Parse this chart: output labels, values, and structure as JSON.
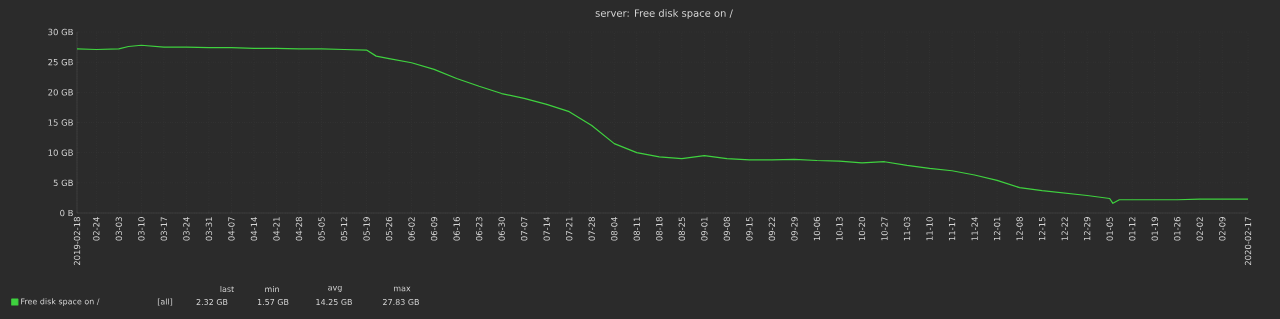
{
  "chart_data": {
    "type": "line",
    "title": "server: Free disk space on /",
    "x": [
      "2019-02-18",
      "2019-02-24",
      "2019-03-03",
      "2019-03-06",
      "2019-03-10",
      "2019-03-17",
      "2019-03-24",
      "2019-03-31",
      "2019-04-07",
      "2019-04-14",
      "2019-04-21",
      "2019-04-28",
      "2019-05-05",
      "2019-05-12",
      "2019-05-19",
      "2019-05-22",
      "2019-05-26",
      "2019-06-02",
      "2019-06-09",
      "2019-06-16",
      "2019-06-23",
      "2019-06-30",
      "2019-07-07",
      "2019-07-14",
      "2019-07-21",
      "2019-07-28",
      "2019-08-04",
      "2019-08-11",
      "2019-08-18",
      "2019-08-25",
      "2019-09-01",
      "2019-09-08",
      "2019-09-15",
      "2019-09-22",
      "2019-09-29",
      "2019-10-06",
      "2019-10-13",
      "2019-10-20",
      "2019-10-27",
      "2019-11-03",
      "2019-11-10",
      "2019-11-17",
      "2019-11-24",
      "2019-12-01",
      "2019-12-08",
      "2019-12-15",
      "2019-12-22",
      "2019-12-29",
      "2020-01-05",
      "2020-01-06",
      "2020-01-08",
      "2020-01-12",
      "2020-01-19",
      "2020-01-26",
      "2020-02-02",
      "2020-02-09",
      "2020-02-17"
    ],
    "series": [
      {
        "name": "Free disk space on /",
        "color": "#3fd23f",
        "values": [
          27.2,
          27.1,
          27.2,
          27.6,
          27.8,
          27.5,
          27.5,
          27.4,
          27.4,
          27.3,
          27.3,
          27.2,
          27.2,
          27.1,
          27.0,
          26.0,
          25.6,
          24.9,
          23.8,
          22.3,
          21.0,
          19.8,
          19.0,
          18.0,
          16.8,
          14.5,
          11.5,
          10.0,
          9.3,
          9.0,
          9.5,
          9.0,
          8.8,
          8.8,
          8.9,
          8.7,
          8.6,
          8.3,
          8.5,
          7.9,
          7.4,
          7.0,
          6.3,
          5.4,
          4.2,
          3.7,
          3.3,
          2.9,
          2.4,
          1.6,
          2.2,
          2.2,
          2.2,
          2.2,
          2.3,
          2.3,
          2.3
        ]
      }
    ],
    "xlim": [
      "2019-02-18",
      "2020-02-17"
    ],
    "xticks": [
      {
        "value": "2019-02-18",
        "label": "2019-02-18"
      },
      {
        "value": "2019-02-24",
        "label": "02-24"
      },
      {
        "value": "2019-03-03",
        "label": "03-03"
      },
      {
        "value": "2019-03-10",
        "label": "03-10"
      },
      {
        "value": "2019-03-17",
        "label": "03-17"
      },
      {
        "value": "2019-03-24",
        "label": "03-24"
      },
      {
        "value": "2019-03-31",
        "label": "03-31"
      },
      {
        "value": "2019-04-07",
        "label": "04-07"
      },
      {
        "value": "2019-04-14",
        "label": "04-14"
      },
      {
        "value": "2019-04-21",
        "label": "04-21"
      },
      {
        "value": "2019-04-28",
        "label": "04-28"
      },
      {
        "value": "2019-05-05",
        "label": "05-05"
      },
      {
        "value": "2019-05-12",
        "label": "05-12"
      },
      {
        "value": "2019-05-19",
        "label": "05-19"
      },
      {
        "value": "2019-05-26",
        "label": "05-26"
      },
      {
        "value": "2019-06-02",
        "label": "06-02"
      },
      {
        "value": "2019-06-09",
        "label": "06-09"
      },
      {
        "value": "2019-06-16",
        "label": "06-16"
      },
      {
        "value": "2019-06-23",
        "label": "06-23"
      },
      {
        "value": "2019-06-30",
        "label": "06-30"
      },
      {
        "value": "2019-07-07",
        "label": "07-07"
      },
      {
        "value": "2019-07-14",
        "label": "07-14"
      },
      {
        "value": "2019-07-21",
        "label": "07-21"
      },
      {
        "value": "2019-07-28",
        "label": "07-28"
      },
      {
        "value": "2019-08-04",
        "label": "08-04"
      },
      {
        "value": "2019-08-11",
        "label": "08-11"
      },
      {
        "value": "2019-08-18",
        "label": "08-18"
      },
      {
        "value": "2019-08-25",
        "label": "08-25"
      },
      {
        "value": "2019-09-01",
        "label": "09-01"
      },
      {
        "value": "2019-09-08",
        "label": "09-08"
      },
      {
        "value": "2019-09-15",
        "label": "09-15"
      },
      {
        "value": "2019-09-22",
        "label": "09-22"
      },
      {
        "value": "2019-09-29",
        "label": "09-29"
      },
      {
        "value": "2019-10-06",
        "label": "10-06"
      },
      {
        "value": "2019-10-13",
        "label": "10-13"
      },
      {
        "value": "2019-10-20",
        "label": "10-20"
      },
      {
        "value": "2019-10-27",
        "label": "10-27"
      },
      {
        "value": "2019-11-03",
        "label": "11-03"
      },
      {
        "value": "2019-11-10",
        "label": "11-10"
      },
      {
        "value": "2019-11-17",
        "label": "11-17"
      },
      {
        "value": "2019-11-24",
        "label": "11-24"
      },
      {
        "value": "2019-12-01",
        "label": "12-01"
      },
      {
        "value": "2019-12-08",
        "label": "12-08"
      },
      {
        "value": "2019-12-15",
        "label": "12-15"
      },
      {
        "value": "2019-12-22",
        "label": "12-22"
      },
      {
        "value": "2019-12-29",
        "label": "12-29"
      },
      {
        "value": "2020-01-05",
        "label": "01-05"
      },
      {
        "value": "2020-01-12",
        "label": "01-12"
      },
      {
        "value": "2020-01-19",
        "label": "01-19"
      },
      {
        "value": "2020-01-26",
        "label": "01-26"
      },
      {
        "value": "2020-02-02",
        "label": "02-02"
      },
      {
        "value": "2020-02-09",
        "label": "02-09"
      },
      {
        "value": "2020-02-17",
        "label": "2020-02-17"
      }
    ],
    "ylim": [
      0,
      30
    ],
    "yticks": [
      {
        "value": 0,
        "label": "0 B"
      },
      {
        "value": 5,
        "label": "5 GB"
      },
      {
        "value": 10,
        "label": "10 GB"
      },
      {
        "value": 15,
        "label": "15 GB"
      },
      {
        "value": 20,
        "label": "20 GB"
      },
      {
        "value": 25,
        "label": "25 GB"
      },
      {
        "value": 30,
        "label": "30 GB"
      }
    ],
    "grid": true,
    "legend": "bottom left",
    "marker": "none",
    "line_style": "solid",
    "annotations": [
      "[all]",
      "last",
      "min",
      "avg",
      "max",
      "2.32 GB",
      "1.57 GB",
      "14.25 GB",
      "27.83 GB"
    ]
  }
}
